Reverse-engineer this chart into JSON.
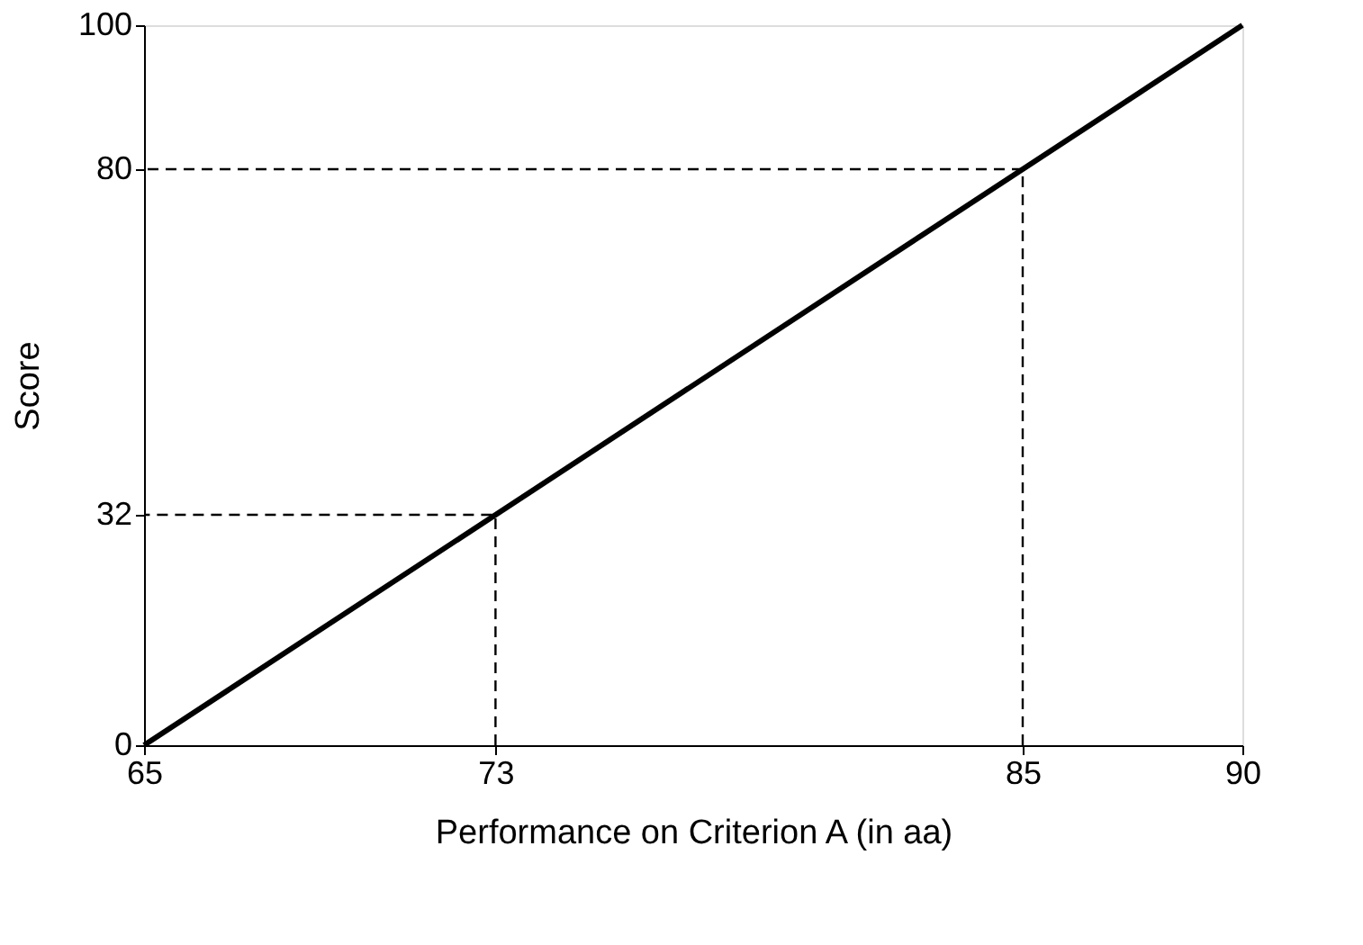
{
  "chart_data": {
    "type": "line",
    "xlabel": "Performance on Criterion A (in aa)",
    "ylabel": "Score",
    "series": [
      {
        "x": [
          65,
          90
        ],
        "values": [
          0,
          100
        ],
        "color": "#000000",
        "line_style": "solid"
      },
      {
        "x": [
          73,
          73,
          65
        ],
        "values": [
          0,
          32,
          32
        ],
        "color": "#000000",
        "line_style": "dashed"
      },
      {
        "x": [
          85,
          85,
          65
        ],
        "values": [
          0,
          80,
          80
        ],
        "color": "#000000",
        "line_style": "dashed"
      }
    ],
    "xlim": [
      65,
      90
    ],
    "ylim": [
      0,
      100
    ],
    "xticks": [
      65,
      73,
      85,
      90
    ],
    "yticks": [
      0,
      32,
      80,
      100
    ],
    "grid": false,
    "marker": "none"
  }
}
